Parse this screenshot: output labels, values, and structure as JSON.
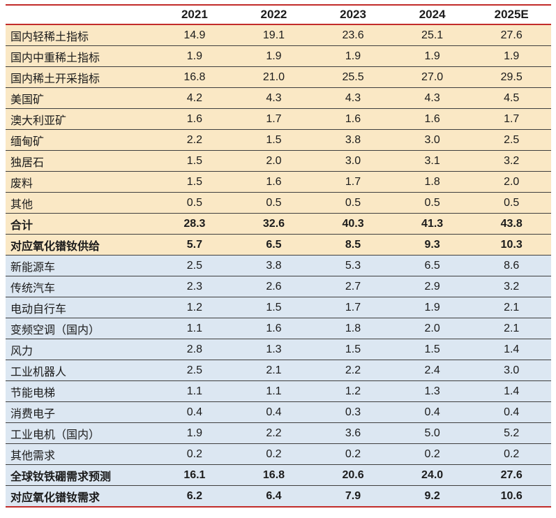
{
  "chart_data": {
    "type": "table",
    "columns": [
      "2021",
      "2022",
      "2023",
      "2024",
      "2025E"
    ],
    "rows": [
      {
        "label": "国内轻稀土指标",
        "values": [
          "14.9",
          "19.1",
          "23.6",
          "25.1",
          "27.6"
        ],
        "section": "supply",
        "bold": false
      },
      {
        "label": "国内中重稀土指标",
        "values": [
          "1.9",
          "1.9",
          "1.9",
          "1.9",
          "1.9"
        ],
        "section": "supply",
        "bold": false
      },
      {
        "label": "国内稀土开采指标",
        "values": [
          "16.8",
          "21.0",
          "25.5",
          "27.0",
          "29.5"
        ],
        "section": "supply",
        "bold": false
      },
      {
        "label": "美国矿",
        "values": [
          "4.2",
          "4.3",
          "4.3",
          "4.3",
          "4.5"
        ],
        "section": "supply",
        "bold": false
      },
      {
        "label": "澳大利亚矿",
        "values": [
          "1.6",
          "1.7",
          "1.6",
          "1.6",
          "1.7"
        ],
        "section": "supply",
        "bold": false
      },
      {
        "label": "缅甸矿",
        "values": [
          "2.2",
          "1.5",
          "3.8",
          "3.0",
          "2.5"
        ],
        "section": "supply",
        "bold": false
      },
      {
        "label": "独居石",
        "values": [
          "1.5",
          "2.0",
          "3.0",
          "3.1",
          "3.2"
        ],
        "section": "supply",
        "bold": false
      },
      {
        "label": "废料",
        "values": [
          "1.5",
          "1.6",
          "1.7",
          "1.8",
          "2.0"
        ],
        "section": "supply",
        "bold": false
      },
      {
        "label": "其他",
        "values": [
          "0.5",
          "0.5",
          "0.5",
          "0.5",
          "0.5"
        ],
        "section": "supply",
        "bold": false
      },
      {
        "label": "合计",
        "values": [
          "28.3",
          "32.6",
          "40.3",
          "41.3",
          "43.8"
        ],
        "section": "supply",
        "bold": true
      },
      {
        "label": "对应氧化镨钕供给",
        "values": [
          "5.7",
          "6.5",
          "8.5",
          "9.3",
          "10.3"
        ],
        "section": "supply",
        "bold": true
      },
      {
        "label": "新能源车",
        "values": [
          "2.5",
          "3.8",
          "5.3",
          "6.5",
          "8.6"
        ],
        "section": "demand",
        "bold": false
      },
      {
        "label": "传统汽车",
        "values": [
          "2.3",
          "2.6",
          "2.7",
          "2.9",
          "3.2"
        ],
        "section": "demand",
        "bold": false
      },
      {
        "label": "电动自行车",
        "values": [
          "1.2",
          "1.5",
          "1.7",
          "1.9",
          "2.1"
        ],
        "section": "demand",
        "bold": false
      },
      {
        "label": "变频空调（国内）",
        "values": [
          "1.1",
          "1.6",
          "1.8",
          "2.0",
          "2.1"
        ],
        "section": "demand",
        "bold": false
      },
      {
        "label": "风力",
        "values": [
          "2.8",
          "1.3",
          "1.5",
          "1.5",
          "1.4"
        ],
        "section": "demand",
        "bold": false
      },
      {
        "label": "工业机器人",
        "values": [
          "2.5",
          "2.1",
          "2.2",
          "2.4",
          "3.0"
        ],
        "section": "demand",
        "bold": false
      },
      {
        "label": "节能电梯",
        "values": [
          "1.1",
          "1.1",
          "1.2",
          "1.3",
          "1.4"
        ],
        "section": "demand",
        "bold": false
      },
      {
        "label": "消费电子",
        "values": [
          "0.4",
          "0.4",
          "0.3",
          "0.4",
          "0.4"
        ],
        "section": "demand",
        "bold": false
      },
      {
        "label": "工业电机（国内）",
        "values": [
          "1.9",
          "2.2",
          "3.6",
          "5.0",
          "5.2"
        ],
        "section": "demand",
        "bold": false
      },
      {
        "label": "其他需求",
        "values": [
          "0.2",
          "0.2",
          "0.2",
          "0.2",
          "0.2"
        ],
        "section": "demand",
        "bold": false
      },
      {
        "label": "全球钕铁硼需求预测",
        "values": [
          "16.1",
          "16.8",
          "20.6",
          "24.0",
          "27.6"
        ],
        "section": "demand",
        "bold": true
      },
      {
        "label": "对应氧化镨钕需求",
        "values": [
          "6.2",
          "6.4",
          "7.9",
          "9.2",
          "10.6"
        ],
        "section": "demand",
        "bold": true
      }
    ]
  },
  "colors": {
    "supply_row_bg": "#fae8c5",
    "demand_row_bg": "#dce7f2",
    "rule_red": "#c22c2a",
    "row_line": "#3e3e3e",
    "text": "#1b1b1b"
  }
}
